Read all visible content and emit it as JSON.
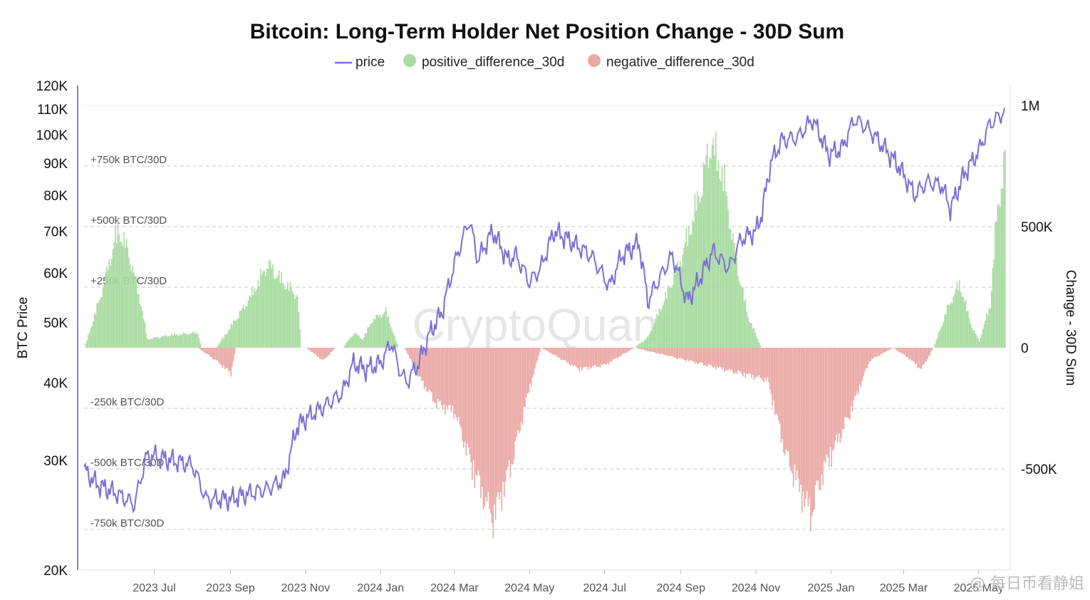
{
  "chart_data": {
    "type": "bar+line",
    "title": "Bitcoin: Long-Term Holder Net Position Change - 30D Sum",
    "legend": [
      {
        "name": "price",
        "color": "#7b6fd6",
        "shape": "line"
      },
      {
        "name": "positive_difference_30d",
        "color": "#a8dba0",
        "shape": "dot"
      },
      {
        "name": "negative_difference_30d",
        "color": "#eaa9a5",
        "shape": "dot"
      }
    ],
    "legend_position": "top-center",
    "ylabel_left": "BTC Price",
    "ylabel_right": "Change - 30D Sum",
    "y_left_scale": "log",
    "y_left_ticks": [
      "120K",
      "110K",
      "100K",
      "90K",
      "80K",
      "70K",
      "60K",
      "50K",
      "40K",
      "30K",
      "20K"
    ],
    "y_left_tick_values": [
      120000,
      110000,
      100000,
      90000,
      80000,
      70000,
      60000,
      50000,
      40000,
      30000,
      20000
    ],
    "y_right_ticks": [
      "1M",
      "500K",
      "0",
      "-500K"
    ],
    "y_right_tick_values": [
      1000000,
      500000,
      0,
      -500000
    ],
    "ylim_right": [
      -920000,
      1000000
    ],
    "reference_lines": [
      {
        "value": 750000,
        "label": "+750k BTC/30D"
      },
      {
        "value": 500000,
        "label": "+500k BTC/30D"
      },
      {
        "value": 250000,
        "label": "+250k BTC/30D"
      },
      {
        "value": -250000,
        "label": "-250k BTC/30D"
      },
      {
        "value": -500000,
        "label": "-500k BTC/30D"
      },
      {
        "value": -750000,
        "label": "-750k BTC/30D"
      }
    ],
    "x_ticks": [
      "2023 Jul",
      "2023 Sep",
      "2023 Nov",
      "2024 Jan",
      "2024 Mar",
      "2024 May",
      "2024 Jul",
      "2024 Sep",
      "2024 Nov",
      "2025 Jan",
      "2025 Mar",
      "2025 May"
    ],
    "x_range": [
      "2023-05-05",
      "2025-05-22"
    ],
    "series": [
      {
        "name": "price",
        "color": "#7b6fd6",
        "x": [
          "2023-05-05",
          "2023-05-15",
          "2023-06-01",
          "2023-06-15",
          "2023-06-25",
          "2023-07-01",
          "2023-07-15",
          "2023-08-01",
          "2023-08-12",
          "2023-08-20",
          "2023-09-01",
          "2023-09-15",
          "2023-10-01",
          "2023-10-15",
          "2023-10-25",
          "2023-11-01",
          "2023-11-15",
          "2023-12-01",
          "2023-12-10",
          "2023-12-20",
          "2024-01-01",
          "2024-01-10",
          "2024-01-15",
          "2024-01-22",
          "2024-02-01",
          "2024-02-10",
          "2024-02-20",
          "2024-03-01",
          "2024-03-13",
          "2024-03-20",
          "2024-04-01",
          "2024-04-13",
          "2024-04-20",
          "2024-05-01",
          "2024-05-10",
          "2024-05-21",
          "2024-06-01",
          "2024-06-10",
          "2024-06-20",
          "2024-07-05",
          "2024-07-15",
          "2024-07-29",
          "2024-08-05",
          "2024-08-15",
          "2024-08-25",
          "2024-09-06",
          "2024-09-15",
          "2024-09-27",
          "2024-10-10",
          "2024-10-20",
          "2024-11-01",
          "2024-11-06",
          "2024-11-13",
          "2024-11-22",
          "2024-12-05",
          "2024-12-17",
          "2024-12-30",
          "2025-01-10",
          "2025-01-20",
          "2025-02-01",
          "2025-02-10",
          "2025-02-25",
          "2025-03-10",
          "2025-03-20",
          "2025-04-01",
          "2025-04-08",
          "2025-04-20",
          "2025-05-01",
          "2025-05-10",
          "2025-05-22"
        ],
        "values": [
          29000,
          27500,
          26500,
          25500,
          30500,
          30500,
          30000,
          29500,
          26000,
          26000,
          26000,
          26500,
          27000,
          28000,
          34000,
          35000,
          36500,
          38500,
          43000,
          42000,
          43000,
          46500,
          42500,
          40000,
          43000,
          48000,
          52000,
          62000,
          73000,
          63000,
          70000,
          63000,
          64000,
          58000,
          61000,
          70000,
          68000,
          66000,
          64000,
          57000,
          64000,
          67000,
          54000,
          59000,
          64000,
          54000,
          58000,
          65000,
          61000,
          68000,
          70000,
          75000,
          90000,
          98000,
          99000,
          106000,
          93000,
          95000,
          106000,
          102000,
          97000,
          89000,
          80000,
          84000,
          83000,
          76000,
          87000,
          94000,
          104000,
          109000
        ]
      },
      {
        "name": "positive_difference_30d",
        "color": "#a8dba0",
        "x": [
          "2023-05-05",
          "2023-05-20",
          "2023-06-01",
          "2023-06-10",
          "2023-06-20",
          "2023-06-25",
          "2023-07-15",
          "2023-08-05",
          "2023-08-08",
          "2023-08-20",
          "2023-09-01",
          "2023-09-15",
          "2023-10-01",
          "2023-10-10",
          "2023-10-25",
          "2023-10-28",
          "2023-12-01",
          "2023-12-10",
          "2023-12-17",
          "2023-12-25",
          "2024-01-05",
          "2024-01-15",
          "2024-01-20",
          "2024-07-25",
          "2024-08-05",
          "2024-08-20",
          "2024-09-01",
          "2024-09-15",
          "2024-09-25",
          "2024-10-05",
          "2024-10-15",
          "2024-10-25",
          "2024-11-05",
          "2024-11-10",
          "2025-03-25",
          "2025-04-05",
          "2025-04-15",
          "2025-04-25",
          "2025-05-01",
          "2025-05-10",
          "2025-05-15",
          "2025-05-22"
        ],
        "values": [
          0,
          280000,
          560000,
          440000,
          200000,
          40000,
          60000,
          70000,
          0,
          0,
          100000,
          220000,
          390000,
          330000,
          240000,
          0,
          0,
          70000,
          40000,
          130000,
          170000,
          0,
          0,
          0,
          50000,
          250000,
          420000,
          700000,
          960000,
          800000,
          420000,
          150000,
          0,
          0,
          0,
          180000,
          300000,
          100000,
          30000,
          200000,
          600000,
          880000
        ]
      },
      {
        "name": "negative_difference_30d",
        "color": "#eaa9a5",
        "x": [
          "2023-08-05",
          "2023-08-20",
          "2023-09-01",
          "2023-09-05",
          "2023-11-01",
          "2023-11-15",
          "2023-11-25",
          "2024-01-20",
          "2024-02-01",
          "2024-02-15",
          "2024-03-01",
          "2024-03-15",
          "2024-04-01",
          "2024-04-15",
          "2024-05-01",
          "2024-05-10",
          "2024-06-10",
          "2024-07-01",
          "2024-07-25",
          "2024-11-10",
          "2024-11-25",
          "2024-12-15",
          "2024-12-25",
          "2025-01-15",
          "2025-02-01",
          "2025-02-20",
          "2025-03-05",
          "2025-03-15",
          "2025-03-25"
        ],
        "values": [
          0,
          -60000,
          -120000,
          0,
          0,
          -60000,
          0,
          0,
          -140000,
          -260000,
          -300000,
          -560000,
          -800000,
          -560000,
          -180000,
          0,
          -100000,
          -80000,
          0,
          -150000,
          -500000,
          -780000,
          -580000,
          -320000,
          -60000,
          0,
          -50000,
          -100000,
          0
        ]
      }
    ]
  },
  "watermark": "CryptoQuant",
  "corner_label": "@ 每日币看静姐"
}
